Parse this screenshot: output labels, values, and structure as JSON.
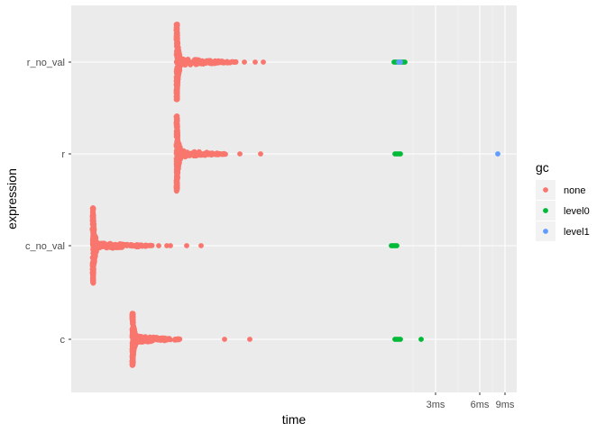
{
  "chart_data": {
    "type": "scatter",
    "title": "",
    "xlabel": "time",
    "ylabel": "expression",
    "x_scale": "log-like (bench autoplot)",
    "x_tick_labels": [
      "3ms",
      "6ms",
      "9ms"
    ],
    "categories": [
      "c",
      "c_no_val",
      "r",
      "r_no_val"
    ],
    "legend": {
      "title": "gc",
      "position": "right",
      "entries": [
        {
          "name": "none",
          "color": "#F8766D"
        },
        {
          "name": "level0",
          "color": "#00BA38"
        },
        {
          "name": "level1",
          "color": "#619CFF"
        }
      ]
    },
    "series": [
      {
        "name": "none",
        "color": "#F8766D",
        "points": [
          {
            "category": "r_no_val",
            "x": "r_no_val main cluster"
          },
          {
            "category": "r",
            "x": "r main cluster"
          },
          {
            "category": "c_no_val",
            "x": "c_no_val main cluster"
          },
          {
            "category": "c",
            "x": "c main cluster"
          }
        ]
      },
      {
        "name": "level0",
        "color": "#00BA38",
        "points": [
          {
            "category": "r_no_val",
            "x": "near 2ms"
          },
          {
            "category": "r",
            "x": "near 2ms"
          },
          {
            "category": "c_no_val",
            "x": "near 2ms"
          },
          {
            "category": "c",
            "x": "near 2ms"
          }
        ]
      },
      {
        "name": "level1",
        "color": "#619CFF",
        "points": [
          {
            "category": "r_no_val",
            "x": "near 2ms"
          },
          {
            "category": "r",
            "x": "about 8.5ms"
          }
        ]
      }
    ],
    "grid": true,
    "background": "#EBEBEB"
  }
}
